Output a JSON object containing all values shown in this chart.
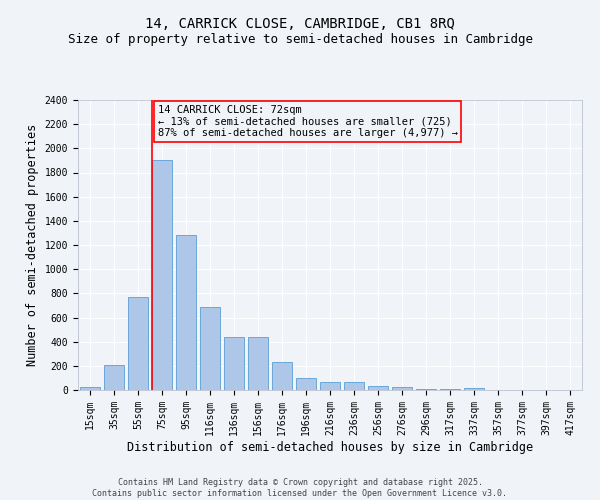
{
  "title_line1": "14, CARRICK CLOSE, CAMBRIDGE, CB1 8RQ",
  "title_line2": "Size of property relative to semi-detached houses in Cambridge",
  "xlabel": "Distribution of semi-detached houses by size in Cambridge",
  "ylabel": "Number of semi-detached properties",
  "footnote": "Contains HM Land Registry data © Crown copyright and database right 2025.\nContains public sector information licensed under the Open Government Licence v3.0.",
  "bar_labels": [
    "15sqm",
    "35sqm",
    "55sqm",
    "75sqm",
    "95sqm",
    "116sqm",
    "136sqm",
    "156sqm",
    "176sqm",
    "196sqm",
    "216sqm",
    "236sqm",
    "256sqm",
    "276sqm",
    "296sqm",
    "317sqm",
    "337sqm",
    "357sqm",
    "377sqm",
    "397sqm",
    "417sqm"
  ],
  "bar_values": [
    25,
    205,
    770,
    1900,
    1280,
    690,
    435,
    435,
    230,
    100,
    65,
    65,
    35,
    25,
    10,
    10,
    20,
    0,
    0,
    0,
    0
  ],
  "bar_color": "#aec6e8",
  "bar_edge_color": "#5a9fd4",
  "vline_bin_index": 3,
  "annotation_text": "14 CARRICK CLOSE: 72sqm\n← 13% of semi-detached houses are smaller (725)\n87% of semi-detached houses are larger (4,977) →",
  "ylim": [
    0,
    2400
  ],
  "yticks": [
    0,
    200,
    400,
    600,
    800,
    1000,
    1200,
    1400,
    1600,
    1800,
    2000,
    2200,
    2400
  ],
  "bg_color": "#f0f4f8",
  "grid_color": "#ffffff",
  "title_fontsize": 10,
  "subtitle_fontsize": 9,
  "axis_label_fontsize": 8.5,
  "tick_fontsize": 7,
  "annotation_fontsize": 7.5,
  "footnote_fontsize": 6
}
